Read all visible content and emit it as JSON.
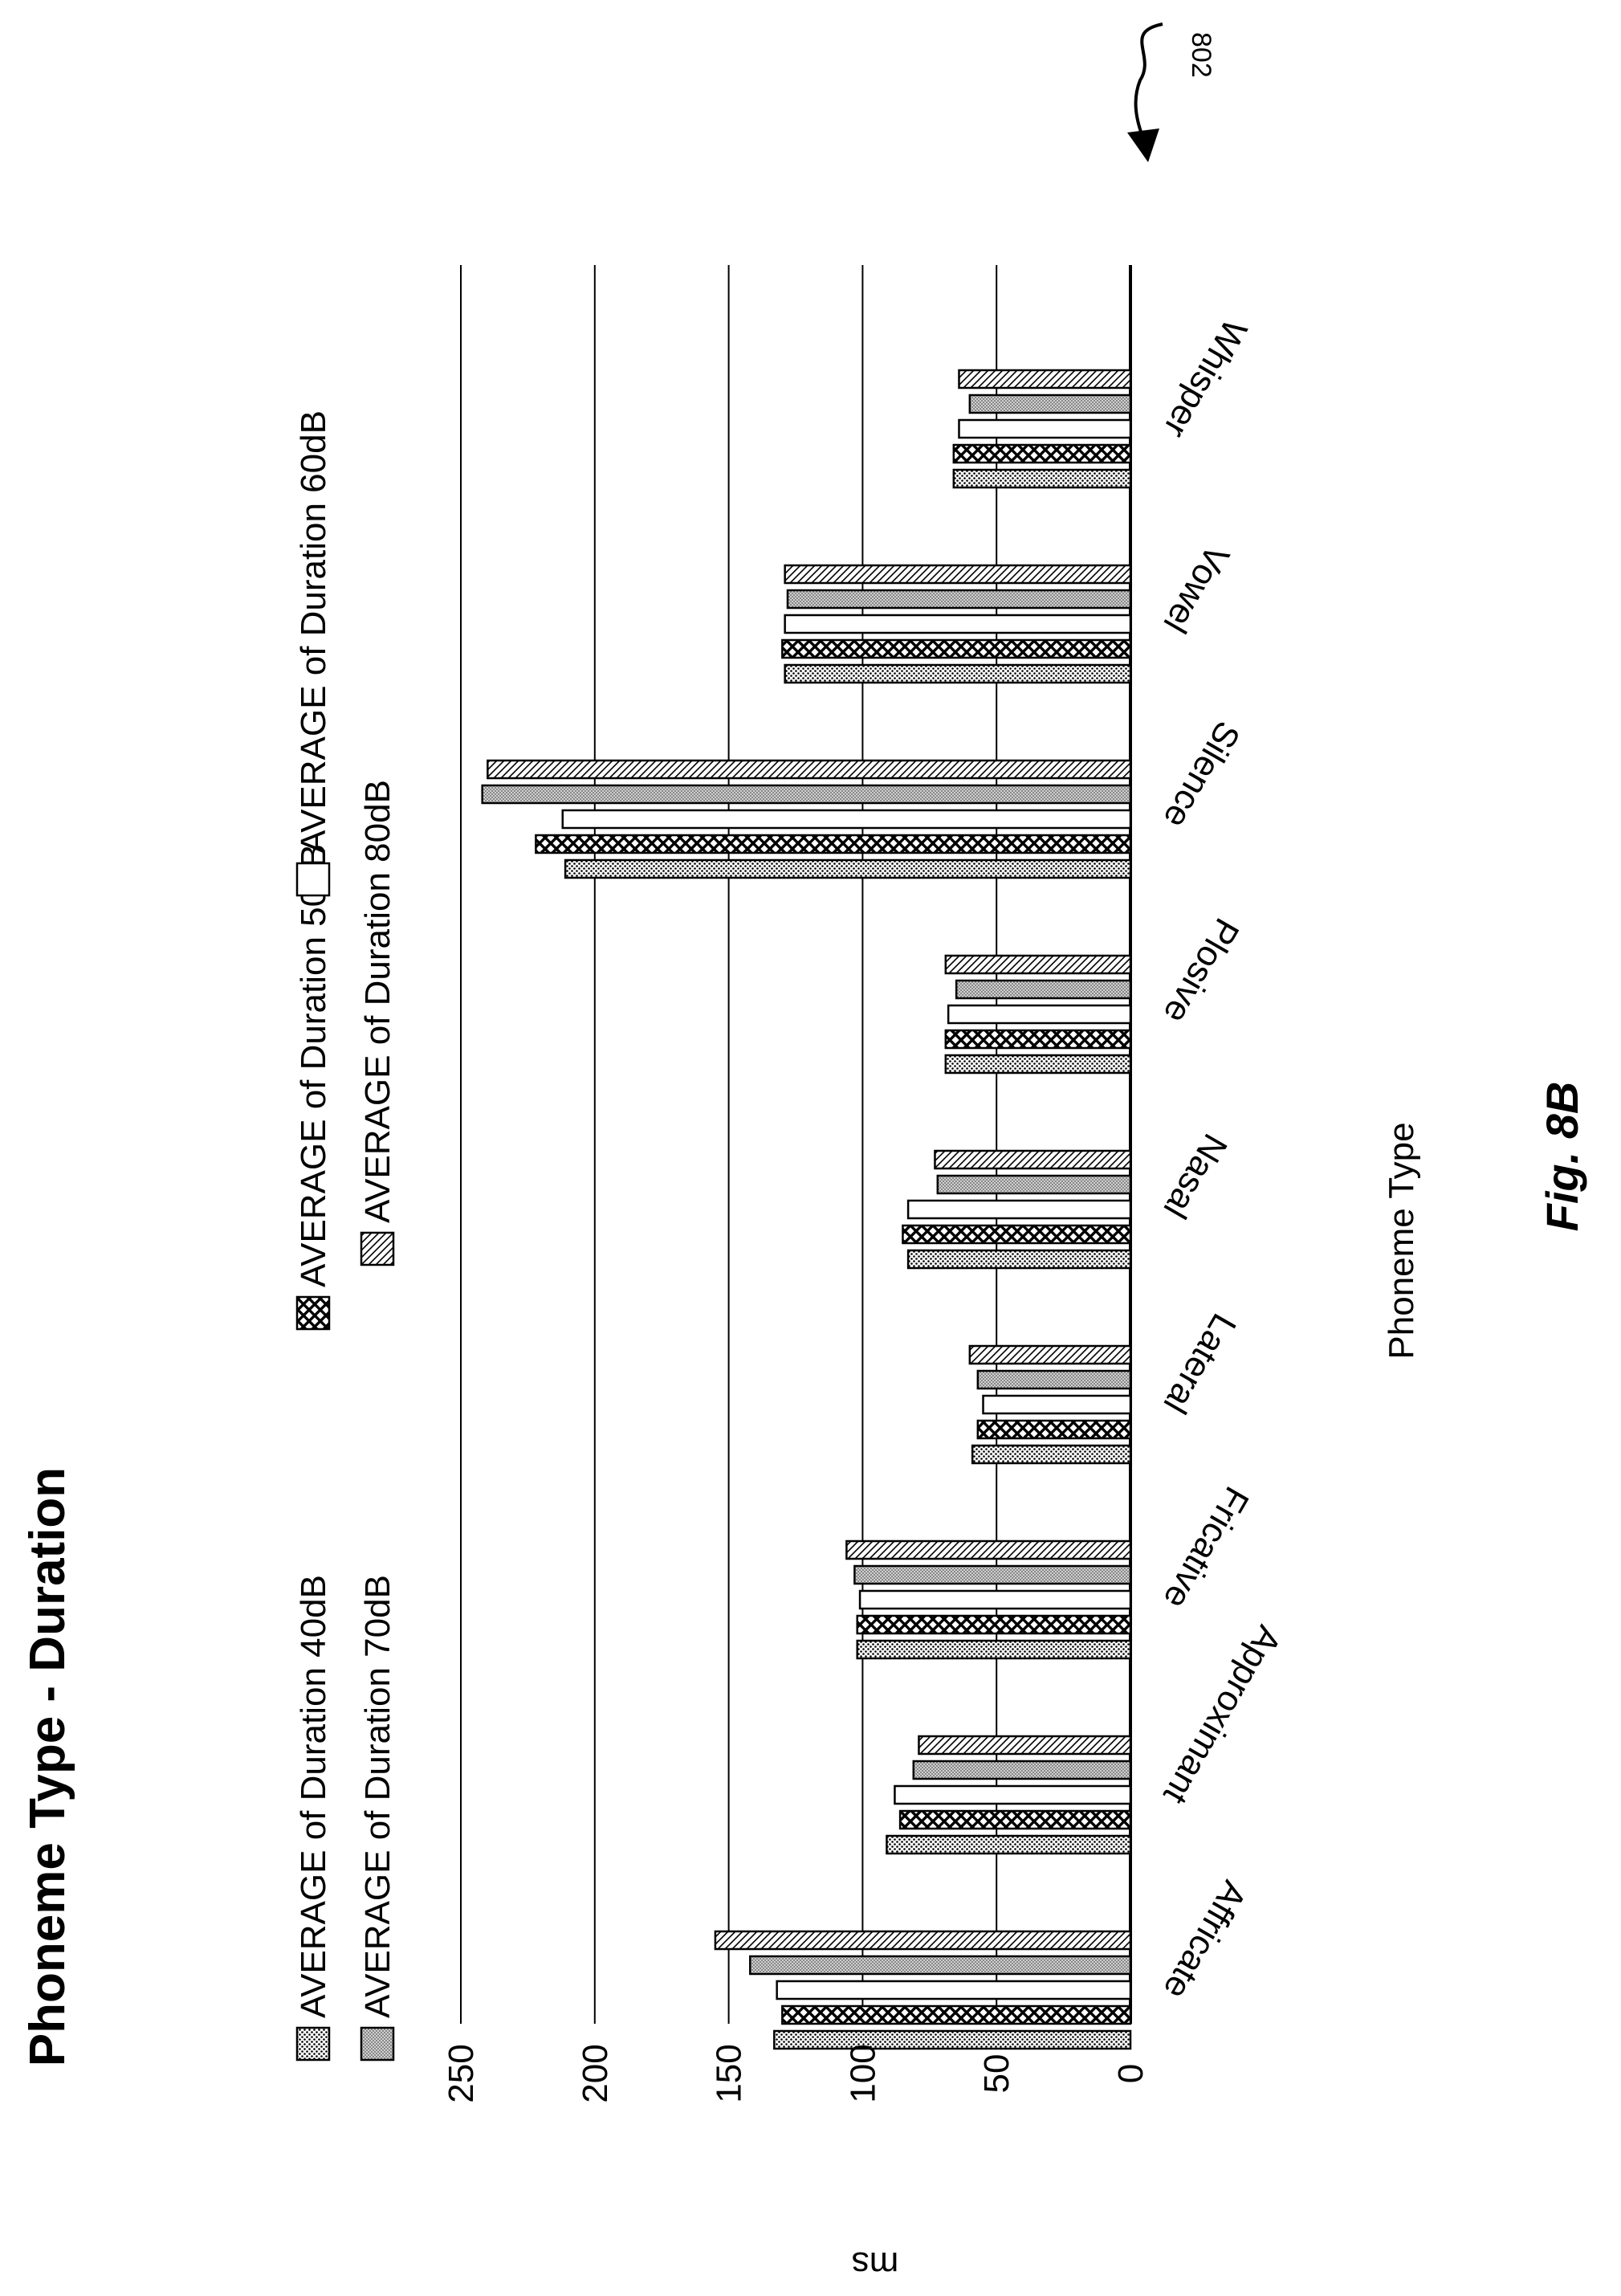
{
  "figure": {
    "ref_numeral": "802",
    "caption": "Fig. 8B"
  },
  "chart_data": {
    "type": "bar",
    "orientation": "rotated 90° (page printed sideways)",
    "title": "Phoneme Type - Duration",
    "xlabel": "Phoneme Type",
    "ylabel": "ms",
    "ylim": [
      0,
      250
    ],
    "yticks": [
      0,
      50,
      100,
      150,
      200,
      250
    ],
    "grid": true,
    "legend_position": "top",
    "categories": [
      "Affricate",
      "Approximant",
      "Fricative",
      "Lateral",
      "Nasal",
      "Plosive",
      "Silence",
      "Vowel",
      "Whisper"
    ],
    "series": [
      {
        "name": "AVERAGE of Duration 40dB",
        "pattern": "dots",
        "values": [
          133,
          91,
          102,
          59,
          83,
          69,
          211,
          129,
          66
        ]
      },
      {
        "name": "AVERAGE of Duration 50dB",
        "pattern": "crosshatch",
        "values": [
          130,
          86,
          102,
          57,
          85,
          69,
          222,
          130,
          66
        ]
      },
      {
        "name": "AVERAGE of Duration 60dB",
        "pattern": "white",
        "values": [
          132,
          88,
          101,
          55,
          83,
          68,
          212,
          129,
          64
        ]
      },
      {
        "name": "AVERAGE of Duration 70dB",
        "pattern": "fine-dots",
        "values": [
          142,
          81,
          103,
          57,
          72,
          65,
          242,
          128,
          60
        ]
      },
      {
        "name": "AVERAGE of Duration 80dB",
        "pattern": "diagonal",
        "values": [
          155,
          79,
          106,
          60,
          73,
          69,
          240,
          129,
          64
        ]
      }
    ]
  }
}
